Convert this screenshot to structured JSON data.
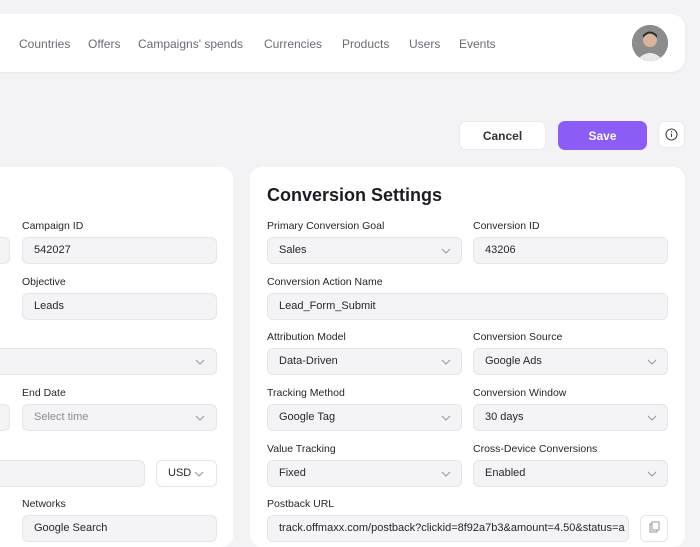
{
  "nav": {
    "items": [
      "Countries",
      "Offers",
      "Campaigns' spends",
      "Currencies",
      "Products",
      "Users",
      "Events"
    ]
  },
  "actions": {
    "cancel": "Cancel",
    "save": "Save"
  },
  "left_panel": {
    "campaign_id": {
      "label": "Campaign ID",
      "value": "542027"
    },
    "objective": {
      "label": "Objective",
      "value": "Leads"
    },
    "end_date": {
      "label": "End Date",
      "placeholder": "Select time"
    },
    "currency": "USD",
    "networks": {
      "label": "Networks",
      "value": "Google Search"
    }
  },
  "right_panel": {
    "title": "Conversion Settings",
    "fields": [
      {
        "label": "Primary Conversion Goal",
        "value": "Sales"
      },
      {
        "label": "Conversion ID",
        "value": "43206"
      },
      {
        "label": "Conversion Action Name",
        "value": "Lead_Form_Submit"
      },
      {
        "label": "Attribution Model",
        "value": "Data-Driven"
      },
      {
        "label": "Conversion Source",
        "value": "Google Ads"
      },
      {
        "label": "Tracking Method",
        "value": "Google Tag"
      },
      {
        "label": "Conversion Window",
        "value": "30 days"
      },
      {
        "label": "Value Tracking",
        "value": "Fixed"
      },
      {
        "label": "Cross-Device Conversions",
        "value": "Enabled"
      },
      {
        "label": "Postback URL",
        "value": "track.offmaxx.com/postback?clickid=8f92a7b3&amount=4.50&status=a"
      }
    ]
  }
}
